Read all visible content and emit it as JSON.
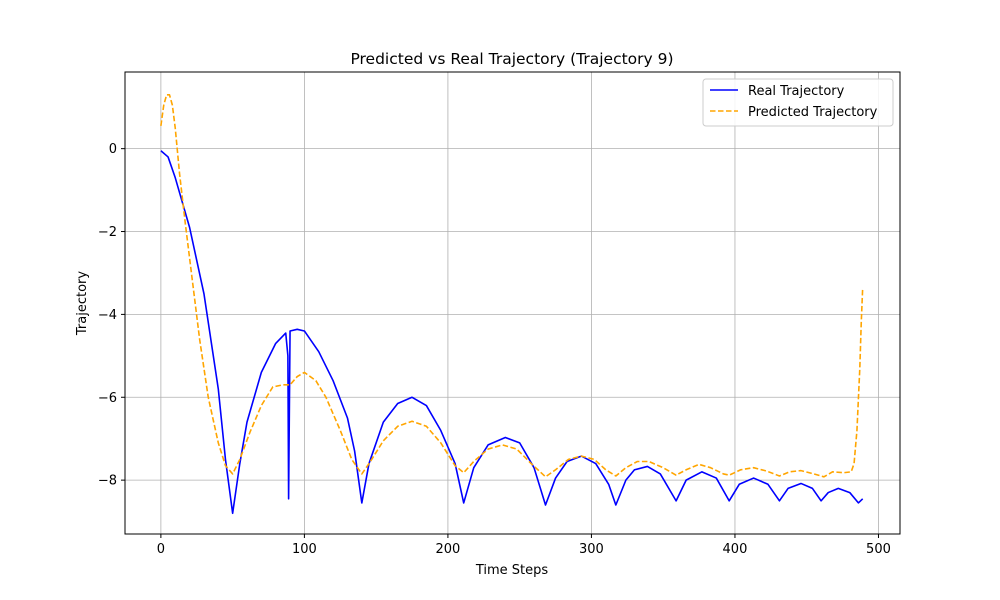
{
  "chart_data": {
    "type": "line",
    "title": "Predicted vs Real Trajectory (Trajectory 9)",
    "xlabel": "Time Steps",
    "ylabel": "Trajectory",
    "xlim": [
      -25,
      515
    ],
    "ylim": [
      -9.3,
      1.85
    ],
    "xticks": [
      0,
      100,
      200,
      300,
      400,
      500
    ],
    "yticks": [
      0,
      -2,
      -4,
      -6,
      -8
    ],
    "grid": true,
    "legend_position": "top-right",
    "series": [
      {
        "name": "Real Trajectory",
        "color": "#0000ff",
        "style": "solid",
        "points": [
          [
            0,
            -0.05
          ],
          [
            5,
            -0.2
          ],
          [
            10,
            -0.7
          ],
          [
            20,
            -1.9
          ],
          [
            30,
            -3.5
          ],
          [
            40,
            -5.8
          ],
          [
            45,
            -7.5
          ],
          [
            50,
            -8.8
          ],
          [
            55,
            -7.6
          ],
          [
            60,
            -6.6
          ],
          [
            70,
            -5.4
          ],
          [
            80,
            -4.7
          ],
          [
            87,
            -4.45
          ],
          [
            88.5,
            -5.0
          ],
          [
            89,
            -8.45
          ],
          [
            90,
            -4.4
          ],
          [
            95,
            -4.36
          ],
          [
            100,
            -4.4
          ],
          [
            110,
            -4.9
          ],
          [
            120,
            -5.6
          ],
          [
            130,
            -6.5
          ],
          [
            135,
            -7.3
          ],
          [
            140,
            -8.55
          ],
          [
            145,
            -7.6
          ],
          [
            155,
            -6.6
          ],
          [
            165,
            -6.15
          ],
          [
            175,
            -6.0
          ],
          [
            185,
            -6.2
          ],
          [
            195,
            -6.8
          ],
          [
            205,
            -7.6
          ],
          [
            211,
            -8.55
          ],
          [
            218,
            -7.7
          ],
          [
            228,
            -7.15
          ],
          [
            240,
            -6.97
          ],
          [
            250,
            -7.1
          ],
          [
            260,
            -7.7
          ],
          [
            268,
            -8.6
          ],
          [
            275,
            -7.95
          ],
          [
            283,
            -7.55
          ],
          [
            293,
            -7.42
          ],
          [
            303,
            -7.6
          ],
          [
            312,
            -8.1
          ],
          [
            317,
            -8.6
          ],
          [
            324,
            -8.0
          ],
          [
            330,
            -7.75
          ],
          [
            339,
            -7.67
          ],
          [
            348,
            -7.85
          ],
          [
            359,
            -8.5
          ],
          [
            366,
            -8.0
          ],
          [
            377,
            -7.8
          ],
          [
            387,
            -7.95
          ],
          [
            396,
            -8.5
          ],
          [
            403,
            -8.1
          ],
          [
            413,
            -7.95
          ],
          [
            423,
            -8.1
          ],
          [
            431,
            -8.5
          ],
          [
            437,
            -8.2
          ],
          [
            446,
            -8.08
          ],
          [
            454,
            -8.2
          ],
          [
            460,
            -8.5
          ],
          [
            465,
            -8.3
          ],
          [
            472,
            -8.2
          ],
          [
            480,
            -8.3
          ],
          [
            486,
            -8.55
          ],
          [
            489,
            -8.45
          ]
        ]
      },
      {
        "name": "Predicted Trajectory",
        "color": "#ffa500",
        "style": "dashed",
        "points": [
          [
            0,
            0.55
          ],
          [
            2,
            1.05
          ],
          [
            4,
            1.3
          ],
          [
            6,
            1.3
          ],
          [
            8,
            1.05
          ],
          [
            10,
            0.5
          ],
          [
            13,
            -0.6
          ],
          [
            17,
            -1.8
          ],
          [
            22,
            -3.2
          ],
          [
            27,
            -4.6
          ],
          [
            33,
            -6.0
          ],
          [
            40,
            -7.1
          ],
          [
            45,
            -7.65
          ],
          [
            50,
            -7.85
          ],
          [
            55,
            -7.5
          ],
          [
            62,
            -6.85
          ],
          [
            70,
            -6.2
          ],
          [
            78,
            -5.75
          ],
          [
            85,
            -5.7
          ],
          [
            90,
            -5.7
          ],
          [
            95,
            -5.5
          ],
          [
            100,
            -5.4
          ],
          [
            108,
            -5.6
          ],
          [
            115,
            -6.0
          ],
          [
            125,
            -6.8
          ],
          [
            133,
            -7.5
          ],
          [
            140,
            -7.85
          ],
          [
            146,
            -7.55
          ],
          [
            155,
            -7.05
          ],
          [
            165,
            -6.7
          ],
          [
            175,
            -6.58
          ],
          [
            185,
            -6.7
          ],
          [
            195,
            -7.1
          ],
          [
            205,
            -7.65
          ],
          [
            211,
            -7.82
          ],
          [
            218,
            -7.55
          ],
          [
            228,
            -7.25
          ],
          [
            238,
            -7.15
          ],
          [
            248,
            -7.25
          ],
          [
            258,
            -7.6
          ],
          [
            268,
            -7.92
          ],
          [
            275,
            -7.75
          ],
          [
            284,
            -7.5
          ],
          [
            293,
            -7.42
          ],
          [
            302,
            -7.5
          ],
          [
            310,
            -7.75
          ],
          [
            317,
            -7.9
          ],
          [
            324,
            -7.7
          ],
          [
            332,
            -7.55
          ],
          [
            340,
            -7.55
          ],
          [
            350,
            -7.7
          ],
          [
            359,
            -7.88
          ],
          [
            366,
            -7.75
          ],
          [
            375,
            -7.62
          ],
          [
            383,
            -7.7
          ],
          [
            392,
            -7.85
          ],
          [
            396,
            -7.88
          ],
          [
            404,
            -7.75
          ],
          [
            413,
            -7.7
          ],
          [
            422,
            -7.78
          ],
          [
            431,
            -7.9
          ],
          [
            438,
            -7.8
          ],
          [
            446,
            -7.77
          ],
          [
            455,
            -7.85
          ],
          [
            462,
            -7.92
          ],
          [
            468,
            -7.8
          ],
          [
            476,
            -7.82
          ],
          [
            481,
            -7.8
          ],
          [
            483,
            -7.6
          ],
          [
            485,
            -6.8
          ],
          [
            487,
            -5.3
          ],
          [
            488,
            -4.2
          ],
          [
            489,
            -3.35
          ]
        ]
      }
    ]
  }
}
